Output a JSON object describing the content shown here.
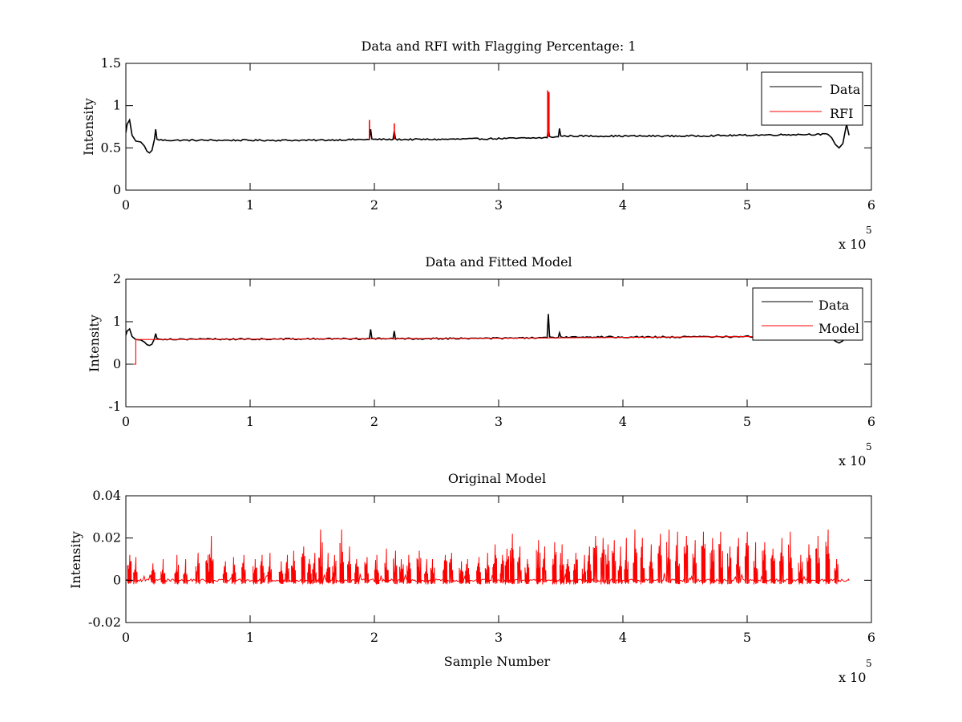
{
  "chart_data": [
    {
      "type": "line",
      "title": "Data and RFI with Flagging Percentage: 1",
      "xlabel": "",
      "ylabel": "Intensity",
      "xlim": [
        0,
        600000
      ],
      "ylim": [
        0,
        1.5
      ],
      "xticks": [
        0,
        100000,
        200000,
        300000,
        400000,
        500000,
        600000
      ],
      "xtick_labels": [
        "0",
        "1",
        "2",
        "3",
        "4",
        "5",
        "6"
      ],
      "yticks": [
        0,
        0.5,
        1,
        1.5
      ],
      "ytick_labels": [
        "0",
        "0.5",
        "1",
        "1.5"
      ],
      "x_multiplier_base": "x 10",
      "x_multiplier_exp": "5",
      "grid": false,
      "legend": "top-right",
      "series": [
        {
          "name": "Data",
          "color": "#000000",
          "points": [
            [
              0,
              0.68
            ],
            [
              1000,
              0.78
            ],
            [
              3000,
              0.83
            ],
            [
              5000,
              0.65
            ],
            [
              8000,
              0.58
            ],
            [
              12000,
              0.57
            ],
            [
              15000,
              0.52
            ],
            [
              17000,
              0.46
            ],
            [
              19000,
              0.44
            ],
            [
              21000,
              0.47
            ],
            [
              23000,
              0.6
            ],
            [
              24000,
              0.72
            ],
            [
              25000,
              0.6
            ],
            [
              30000,
              0.59
            ],
            [
              60000,
              0.59
            ],
            [
              100000,
              0.59
            ],
            [
              150000,
              0.59
            ],
            [
              196000,
              0.6
            ],
            [
              197000,
              0.72
            ],
            [
              198000,
              0.6
            ],
            [
              215000,
              0.6
            ],
            [
              216000,
              0.7
            ],
            [
              217000,
              0.6
            ],
            [
              250000,
              0.6
            ],
            [
              300000,
              0.61
            ],
            [
              339000,
              0.62
            ],
            [
              340000,
              0.74
            ],
            [
              341000,
              0.63
            ],
            [
              348000,
              0.63
            ],
            [
              349000,
              0.73
            ],
            [
              350000,
              0.64
            ],
            [
              400000,
              0.64
            ],
            [
              450000,
              0.64
            ],
            [
              500000,
              0.65
            ],
            [
              550000,
              0.66
            ],
            [
              565000,
              0.66
            ],
            [
              568000,
              0.62
            ],
            [
              571000,
              0.54
            ],
            [
              574000,
              0.5
            ],
            [
              577000,
              0.55
            ],
            [
              580000,
              0.78
            ],
            [
              582000,
              0.65
            ]
          ]
        },
        {
          "name": "RFI",
          "color": "#ff0000",
          "spikes": [
            [
              196000,
              0.6,
              0.83
            ],
            [
              216000,
              0.6,
              0.79
            ],
            [
              339500,
              0.63,
              1.18
            ],
            [
              340500,
              0.63,
              1.16
            ]
          ]
        }
      ]
    },
    {
      "type": "line",
      "title": "Data and Fitted Model",
      "xlabel": "",
      "ylabel": "Intensity",
      "xlim": [
        0,
        600000
      ],
      "ylim": [
        -1,
        2
      ],
      "xticks": [
        0,
        100000,
        200000,
        300000,
        400000,
        500000,
        600000
      ],
      "xtick_labels": [
        "0",
        "1",
        "2",
        "3",
        "4",
        "5",
        "6"
      ],
      "yticks": [
        -1,
        0,
        1,
        2
      ],
      "ytick_labels": [
        "-1",
        "0",
        "1",
        "2"
      ],
      "x_multiplier_base": "x 10",
      "x_multiplier_exp": "5",
      "grid": false,
      "legend": "top-right",
      "series": [
        {
          "name": "Data",
          "color": "#000000",
          "points": [
            [
              0,
              0.68
            ],
            [
              1000,
              0.78
            ],
            [
              3000,
              0.83
            ],
            [
              5000,
              0.65
            ],
            [
              8000,
              0.58
            ],
            [
              12000,
              0.57
            ],
            [
              15000,
              0.52
            ],
            [
              17000,
              0.46
            ],
            [
              19000,
              0.44
            ],
            [
              21000,
              0.47
            ],
            [
              23000,
              0.6
            ],
            [
              24000,
              0.72
            ],
            [
              25000,
              0.6
            ],
            [
              30000,
              0.59
            ],
            [
              100000,
              0.59
            ],
            [
              196000,
              0.6
            ],
            [
              197000,
              0.82
            ],
            [
              198000,
              0.6
            ],
            [
              215000,
              0.6
            ],
            [
              216000,
              0.78
            ],
            [
              217000,
              0.6
            ],
            [
              300000,
              0.61
            ],
            [
              339000,
              0.62
            ],
            [
              340000,
              1.18
            ],
            [
              341000,
              0.63
            ],
            [
              348000,
              0.63
            ],
            [
              349000,
              0.74
            ],
            [
              350000,
              0.64
            ],
            [
              450000,
              0.64
            ],
            [
              550000,
              0.66
            ],
            [
              565000,
              0.66
            ],
            [
              568000,
              0.62
            ],
            [
              571000,
              0.54
            ],
            [
              574000,
              0.5
            ],
            [
              577000,
              0.55
            ],
            [
              580000,
              0.78
            ],
            [
              582000,
              0.65
            ]
          ]
        },
        {
          "name": "Model",
          "color": "#ff0000",
          "points": [
            [
              0,
              0.0
            ],
            [
              8000,
              0.0
            ],
            [
              8000,
              0.58
            ],
            [
              100000,
              0.59
            ],
            [
              200000,
              0.6
            ],
            [
              300000,
              0.61
            ],
            [
              400000,
              0.63
            ],
            [
              500000,
              0.65
            ],
            [
              582000,
              0.66
            ]
          ]
        }
      ]
    },
    {
      "type": "line",
      "title": "Original Model",
      "xlabel": "Sample Number",
      "ylabel": "Intensity",
      "xlim": [
        0,
        600000
      ],
      "ylim": [
        -0.02,
        0.04
      ],
      "xticks": [
        0,
        100000,
        200000,
        300000,
        400000,
        500000,
        600000
      ],
      "xtick_labels": [
        "0",
        "1",
        "2",
        "3",
        "4",
        "5",
        "6"
      ],
      "yticks": [
        -0.02,
        0,
        0.02,
        0.04
      ],
      "ytick_labels": [
        "-0.02",
        "0",
        "0.02",
        "0.04"
      ],
      "x_multiplier_base": "x 10",
      "x_multiplier_exp": "5",
      "grid": false,
      "legend": "none",
      "series": [
        {
          "color": "#ff0000",
          "baseline": 0,
          "x_start": 0,
          "x_end": 582000,
          "peaks": [
            [
              3000,
              0.012
            ],
            [
              8000,
              0.011
            ],
            [
              22000,
              0.008
            ],
            [
              30000,
              0.01
            ],
            [
              41000,
              0.012
            ],
            [
              48000,
              0.01
            ],
            [
              58000,
              0.013
            ],
            [
              66000,
              0.012
            ],
            [
              69000,
              0.021
            ],
            [
              80000,
              0.009
            ],
            [
              87000,
              0.011
            ],
            [
              95000,
              0.012
            ],
            [
              104000,
              0.01
            ],
            [
              110000,
              0.012
            ],
            [
              116000,
              0.013
            ],
            [
              125000,
              0.009
            ],
            [
              130000,
              0.012
            ],
            [
              135000,
              0.014
            ],
            [
              143000,
              0.016
            ],
            [
              148000,
              0.01
            ],
            [
              152000,
              0.013
            ],
            [
              157000,
              0.024
            ],
            [
              163000,
              0.013
            ],
            [
              168000,
              0.012
            ],
            [
              174000,
              0.024
            ],
            [
              180000,
              0.016
            ],
            [
              186000,
              0.01
            ],
            [
              194000,
              0.011
            ],
            [
              202000,
              0.012
            ],
            [
              210000,
              0.015
            ],
            [
              217000,
              0.014
            ],
            [
              222000,
              0.01
            ],
            [
              228000,
              0.012
            ],
            [
              236000,
              0.014
            ],
            [
              242000,
              0.01
            ],
            [
              247000,
              0.01
            ],
            [
              257000,
              0.012
            ],
            [
              262000,
              0.013
            ],
            [
              270000,
              0.009
            ],
            [
              275000,
              0.01
            ],
            [
              284000,
              0.011
            ],
            [
              291000,
              0.013
            ],
            [
              297000,
              0.017
            ],
            [
              303000,
              0.012
            ],
            [
              307000,
              0.015
            ],
            [
              311000,
              0.022
            ],
            [
              317000,
              0.016
            ],
            [
              323000,
              0.01
            ],
            [
              332000,
              0.019
            ],
            [
              337000,
              0.016
            ],
            [
              345000,
              0.018
            ],
            [
              351000,
              0.017
            ],
            [
              356000,
              0.01
            ],
            [
              362000,
              0.013
            ],
            [
              369000,
              0.012
            ],
            [
              373000,
              0.016
            ],
            [
              378000,
              0.021
            ],
            [
              384000,
              0.02
            ],
            [
              388000,
              0.017
            ],
            [
              393000,
              0.019
            ],
            [
              398000,
              0.016
            ],
            [
              403000,
              0.02
            ],
            [
              410000,
              0.024
            ],
            [
              416000,
              0.02
            ],
            [
              423000,
              0.017
            ],
            [
              430000,
              0.022
            ],
            [
              437000,
              0.024
            ],
            [
              444000,
              0.023
            ],
            [
              451000,
              0.021
            ],
            [
              458000,
              0.019
            ],
            [
              465000,
              0.023
            ],
            [
              472000,
              0.02
            ],
            [
              479000,
              0.023
            ],
            [
              486000,
              0.016
            ],
            [
              493000,
              0.02
            ],
            [
              500000,
              0.023
            ],
            [
              507000,
              0.018
            ],
            [
              514000,
              0.018
            ],
            [
              521000,
              0.015
            ],
            [
              528000,
              0.02
            ],
            [
              535000,
              0.023
            ],
            [
              543000,
              0.012
            ],
            [
              550000,
              0.017
            ],
            [
              557000,
              0.021
            ],
            [
              565000,
              0.024
            ],
            [
              572000,
              0.01
            ]
          ]
        }
      ]
    }
  ]
}
